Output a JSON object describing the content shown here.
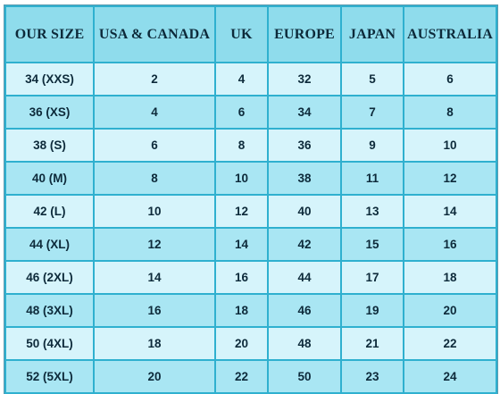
{
  "headers": [
    "OUR SIZE",
    "USA & CANADA",
    "UK",
    "EUROPE",
    "JAPAN",
    "AUSTRALIA"
  ],
  "rows": [
    [
      "34 (XXS)",
      "2",
      "4",
      "32",
      "5",
      "6"
    ],
    [
      "36 (XS)",
      "4",
      "6",
      "34",
      "7",
      "8"
    ],
    [
      "38 (S)",
      "6",
      "8",
      "36",
      "9",
      "10"
    ],
    [
      "40 (M)",
      "8",
      "10",
      "38",
      "11",
      "12"
    ],
    [
      "42 (L)",
      "10",
      "12",
      "40",
      "13",
      "14"
    ],
    [
      "44 (XL)",
      "12",
      "14",
      "42",
      "15",
      "16"
    ],
    [
      "46 (2XL)",
      "14",
      "16",
      "44",
      "17",
      "18"
    ],
    [
      "48 (3XL)",
      "16",
      "18",
      "46",
      "19",
      "20"
    ],
    [
      "50 (4XL)",
      "18",
      "20",
      "48",
      "21",
      "22"
    ],
    [
      "52 (5XL)",
      "20",
      "22",
      "50",
      "23",
      "24"
    ]
  ],
  "colors": {
    "header_bg": "#8fdcec",
    "row_light": "#d6f4fb",
    "row_dark": "#a9e6f3",
    "border": "#2fb0cf",
    "text": "#0d2a3a"
  }
}
